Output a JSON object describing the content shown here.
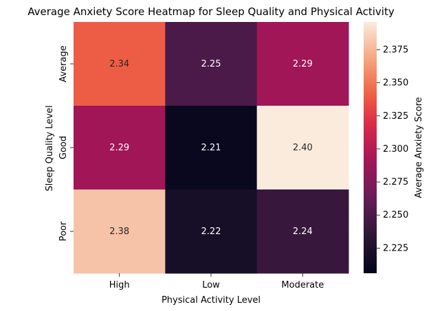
{
  "chart_data": {
    "type": "heatmap",
    "title": "Average Anxiety Score Heatmap for Sleep Quality and Physical Activity",
    "xlabel": "Physical Activity Level",
    "ylabel": "Sleep Quality Level",
    "x_categories": [
      "High",
      "Low",
      "Moderate"
    ],
    "y_categories": [
      "Average",
      "Good",
      "Poor"
    ],
    "values": [
      [
        2.34,
        2.25,
        2.29
      ],
      [
        2.29,
        2.21,
        2.4
      ],
      [
        2.38,
        2.22,
        2.24
      ]
    ],
    "cell_labels": [
      [
        "2.34",
        "2.25",
        "2.29"
      ],
      [
        "2.29",
        "2.21",
        "2.40"
      ],
      [
        "2.38",
        "2.22",
        "2.24"
      ]
    ],
    "colorbar": {
      "label": "Average Anxiety Score",
      "range": [
        2.206,
        2.396
      ],
      "ticks": [
        "2.225",
        "2.250",
        "2.275",
        "2.300",
        "2.325",
        "2.350",
        "2.375"
      ],
      "colormap": "rocket"
    }
  }
}
